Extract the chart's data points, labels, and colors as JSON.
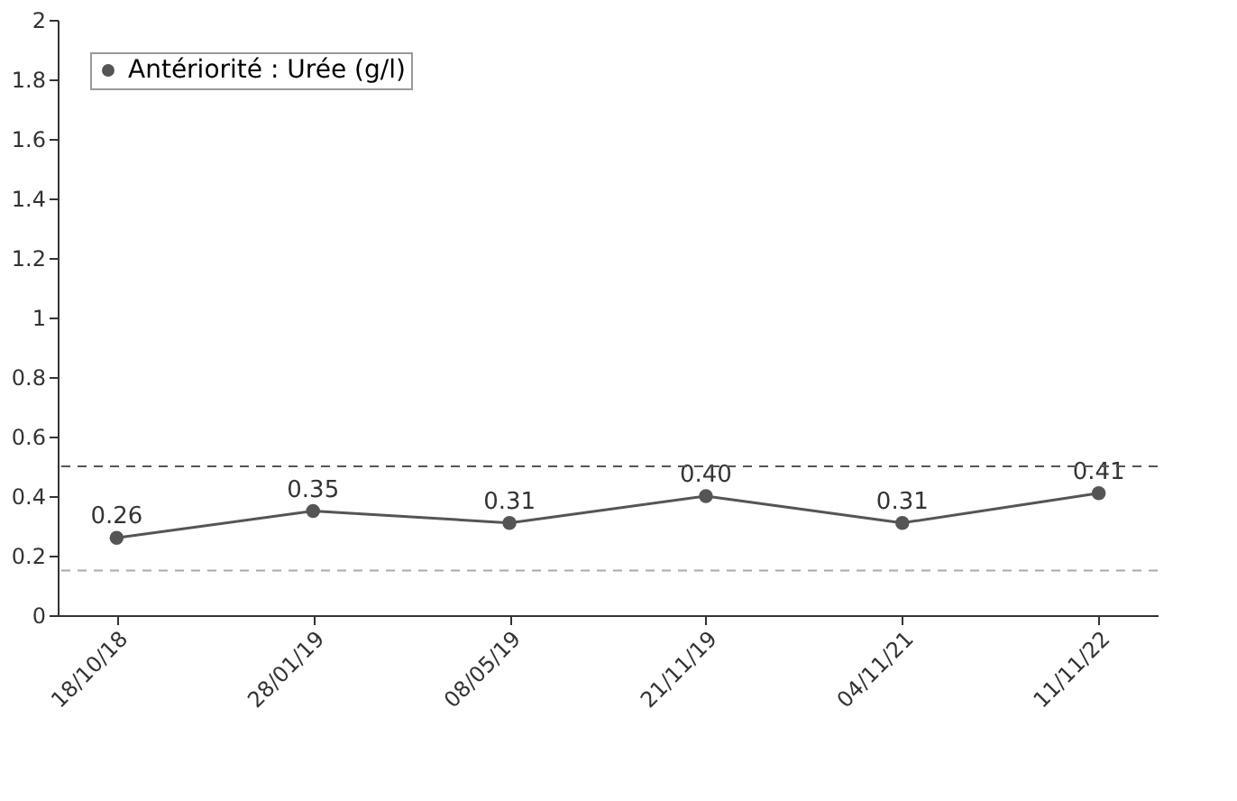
{
  "chart_data": {
    "type": "line",
    "categories": [
      "18/10/18",
      "28/01/19",
      "08/05/19",
      "21/11/19",
      "04/11/21",
      "11/11/22"
    ],
    "series": [
      {
        "name": "Antériorité : Urée (g/l)",
        "color": "#555555",
        "values": [
          0.26,
          0.35,
          0.31,
          0.4,
          0.31,
          0.41
        ],
        "value_labels": [
          "0.26",
          "0.35",
          "0.31",
          "0.40",
          "0.31",
          "0.41"
        ]
      }
    ],
    "ylim": [
      0,
      2
    ],
    "yticks": [
      0,
      0.2,
      0.4,
      0.6,
      0.8,
      1,
      1.2,
      1.4,
      1.6,
      1.8,
      2
    ],
    "ref_lines": [
      {
        "axis": "y",
        "value": 0.5,
        "color": "#555555",
        "line_style": "dashed"
      },
      {
        "axis": "y",
        "value": 0.15,
        "color": "#aaaaaa",
        "line_style": "dashed"
      }
    ],
    "marker": "circle",
    "line_style": "solid",
    "grid": false,
    "legend": "top left"
  }
}
